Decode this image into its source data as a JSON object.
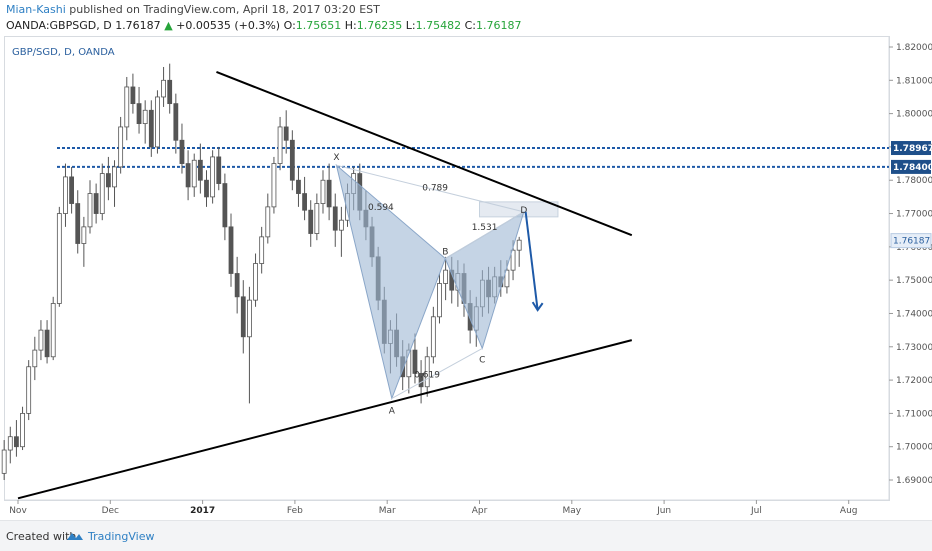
{
  "header": {
    "author": "Mian-Kashi",
    "published_text": "published on TradingView.com, April 18, 2017 03:20 EST",
    "symbol": "OANDA:GBPSGD, D",
    "last": "1.76187",
    "change": "+0.00535 (+0.3%)",
    "o_label": "O:",
    "o_value": "1.75651",
    "h_label": "H:",
    "h_value": "1.76235",
    "l_label": "L:",
    "l_value": "1.75482",
    "c_label": "C:",
    "c_value": "1.76187"
  },
  "chart_title": "GBP/SGD, D, OANDA",
  "footer": {
    "created": "Created with",
    "brand": "TradingView"
  },
  "colors": {
    "candle": "#555555",
    "trendline": "#000000",
    "hline": "#1e5aa8",
    "pattern_fill": "#9fb7d4",
    "arrow": "#1e5aa8"
  },
  "chart_data": {
    "type": "candlestick",
    "title": "GBP/SGD, D, OANDA",
    "x_ticks": [
      "Nov",
      "Dec",
      "2017",
      "Feb",
      "Mar",
      "Apr",
      "May",
      "Jun",
      "Jul",
      "Aug"
    ],
    "y_ticks": [
      "1.82000",
      "1.81000",
      "1.80000",
      "1.79000",
      "1.78000",
      "1.77000",
      "1.76000",
      "1.75000",
      "1.74000",
      "1.73000",
      "1.72000",
      "1.71000",
      "1.70000",
      "1.69000"
    ],
    "ylim": [
      1.684,
      1.823
    ],
    "horizontal_levels": [
      {
        "value": 1.78967,
        "label": "1.78967"
      },
      {
        "value": 1.784,
        "label": "1.78400"
      }
    ],
    "current_price": {
      "value": 1.76187,
      "label": "1.76187"
    },
    "pattern_points": [
      {
        "label": "X",
        "month": 3.45,
        "price": 1.7845
      },
      {
        "label": "A",
        "month": 4.05,
        "price": 1.7145
      },
      {
        "label": "B",
        "month": 4.63,
        "price": 1.7565
      },
      {
        "label": "C",
        "month": 5.03,
        "price": 1.7295
      },
      {
        "label": "D",
        "month": 5.48,
        "price": 1.7705
      }
    ],
    "pattern_ratios": [
      {
        "label": "0.594"
      },
      {
        "label": "0.789"
      },
      {
        "label": "1.531"
      },
      {
        "label": "0.619"
      }
    ],
    "trendlines": [
      {
        "from_month": 2.15,
        "from_price": 1.8125,
        "to_month": 6.65,
        "to_price": 1.7635
      },
      {
        "from_month": 0.0,
        "from_price": 1.6845,
        "to_month": 6.65,
        "to_price": 1.732
      }
    ],
    "forecast_arrow": {
      "from_month": 5.5,
      "from_price": 1.7705,
      "to_month": 5.63,
      "to_price": 1.741
    },
    "target_box": {
      "from_month": 5.0,
      "to_month": 5.85,
      "top": 1.7735,
      "bottom": 1.769
    },
    "candles": [
      [
        1.692,
        1.702,
        1.69,
        1.699
      ],
      [
        1.699,
        1.706,
        1.695,
        1.703
      ],
      [
        1.703,
        1.708,
        1.697,
        1.7
      ],
      [
        1.7,
        1.712,
        1.699,
        1.71
      ],
      [
        1.71,
        1.726,
        1.708,
        1.724
      ],
      [
        1.724,
        1.733,
        1.72,
        1.729
      ],
      [
        1.729,
        1.738,
        1.726,
        1.735
      ],
      [
        1.735,
        1.738,
        1.725,
        1.727
      ],
      [
        1.727,
        1.745,
        1.726,
        1.743
      ],
      [
        1.743,
        1.772,
        1.742,
        1.77
      ],
      [
        1.77,
        1.785,
        1.766,
        1.781
      ],
      [
        1.781,
        1.784,
        1.77,
        1.773
      ],
      [
        1.773,
        1.777,
        1.758,
        1.761
      ],
      [
        1.761,
        1.769,
        1.754,
        1.766
      ],
      [
        1.766,
        1.78,
        1.764,
        1.776
      ],
      [
        1.776,
        1.779,
        1.767,
        1.77
      ],
      [
        1.77,
        1.785,
        1.768,
        1.782
      ],
      [
        1.782,
        1.787,
        1.774,
        1.778
      ],
      [
        1.778,
        1.786,
        1.772,
        1.784
      ],
      [
        1.784,
        1.799,
        1.782,
        1.796
      ],
      [
        1.796,
        1.811,
        1.792,
        1.808
      ],
      [
        1.808,
        1.812,
        1.8,
        1.803
      ],
      [
        1.803,
        1.808,
        1.794,
        1.797
      ],
      [
        1.797,
        1.804,
        1.791,
        1.801
      ],
      [
        1.801,
        1.804,
        1.787,
        1.79
      ],
      [
        1.79,
        1.807,
        1.788,
        1.805
      ],
      [
        1.805,
        1.814,
        1.802,
        1.81
      ],
      [
        1.81,
        1.815,
        1.8,
        1.803
      ],
      [
        1.803,
        1.806,
        1.788,
        1.792
      ],
      [
        1.792,
        1.797,
        1.782,
        1.785
      ],
      [
        1.785,
        1.789,
        1.774,
        1.778
      ],
      [
        1.778,
        1.788,
        1.775,
        1.786
      ],
      [
        1.786,
        1.791,
        1.776,
        1.78
      ],
      [
        1.78,
        1.783,
        1.772,
        1.775
      ],
      [
        1.775,
        1.789,
        1.773,
        1.787
      ],
      [
        1.787,
        1.79,
        1.777,
        1.779
      ],
      [
        1.779,
        1.782,
        1.762,
        1.766
      ],
      [
        1.766,
        1.77,
        1.748,
        1.752
      ],
      [
        1.752,
        1.757,
        1.74,
        1.745
      ],
      [
        1.745,
        1.75,
        1.728,
        1.733
      ],
      [
        1.733,
        1.748,
        1.713,
        1.744
      ],
      [
        1.744,
        1.758,
        1.742,
        1.755
      ],
      [
        1.755,
        1.766,
        1.752,
        1.763
      ],
      [
        1.763,
        1.776,
        1.761,
        1.772
      ],
      [
        1.772,
        1.787,
        1.77,
        1.785
      ],
      [
        1.785,
        1.799,
        1.783,
        1.796
      ],
      [
        1.796,
        1.801,
        1.788,
        1.792
      ],
      [
        1.792,
        1.795,
        1.777,
        1.78
      ],
      [
        1.78,
        1.784,
        1.772,
        1.776
      ],
      [
        1.776,
        1.781,
        1.768,
        1.771
      ],
      [
        1.771,
        1.774,
        1.76,
        1.764
      ],
      [
        1.764,
        1.776,
        1.762,
        1.773
      ],
      [
        1.773,
        1.783,
        1.77,
        1.78
      ],
      [
        1.78,
        1.785,
        1.768,
        1.772
      ],
      [
        1.772,
        1.776,
        1.76,
        1.765
      ],
      [
        1.765,
        1.772,
        1.757,
        1.768
      ],
      [
        1.768,
        1.779,
        1.766,
        1.776
      ],
      [
        1.776,
        1.784,
        1.771,
        1.782
      ],
      [
        1.782,
        1.785,
        1.768,
        1.771
      ],
      [
        1.771,
        1.777,
        1.762,
        1.766
      ],
      [
        1.766,
        1.769,
        1.754,
        1.757
      ],
      [
        1.757,
        1.76,
        1.741,
        1.744
      ],
      [
        1.744,
        1.748,
        1.728,
        1.731
      ],
      [
        1.731,
        1.738,
        1.722,
        1.735
      ],
      [
        1.735,
        1.74,
        1.724,
        1.727
      ],
      [
        1.727,
        1.732,
        1.717,
        1.721
      ],
      [
        1.721,
        1.731,
        1.716,
        1.729
      ],
      [
        1.729,
        1.734,
        1.719,
        1.722
      ],
      [
        1.722,
        1.726,
        1.713,
        1.718
      ],
      [
        1.718,
        1.73,
        1.715,
        1.727
      ],
      [
        1.727,
        1.742,
        1.725,
        1.739
      ],
      [
        1.739,
        1.752,
        1.737,
        1.749
      ],
      [
        1.749,
        1.757,
        1.744,
        1.753
      ],
      [
        1.753,
        1.757,
        1.743,
        1.747
      ],
      [
        1.747,
        1.756,
        1.742,
        1.752
      ],
      [
        1.752,
        1.755,
        1.739,
        1.743
      ],
      [
        1.743,
        1.747,
        1.731,
        1.735
      ],
      [
        1.735,
        1.745,
        1.73,
        1.742
      ],
      [
        1.742,
        1.753,
        1.739,
        1.75
      ],
      [
        1.75,
        1.754,
        1.74,
        1.745
      ],
      [
        1.745,
        1.754,
        1.743,
        1.751
      ],
      [
        1.751,
        1.756,
        1.745,
        1.748
      ],
      [
        1.748,
        1.756,
        1.746,
        1.753
      ],
      [
        1.753,
        1.762,
        1.75,
        1.759
      ],
      [
        1.759,
        1.763,
        1.754,
        1.762
      ]
    ]
  }
}
